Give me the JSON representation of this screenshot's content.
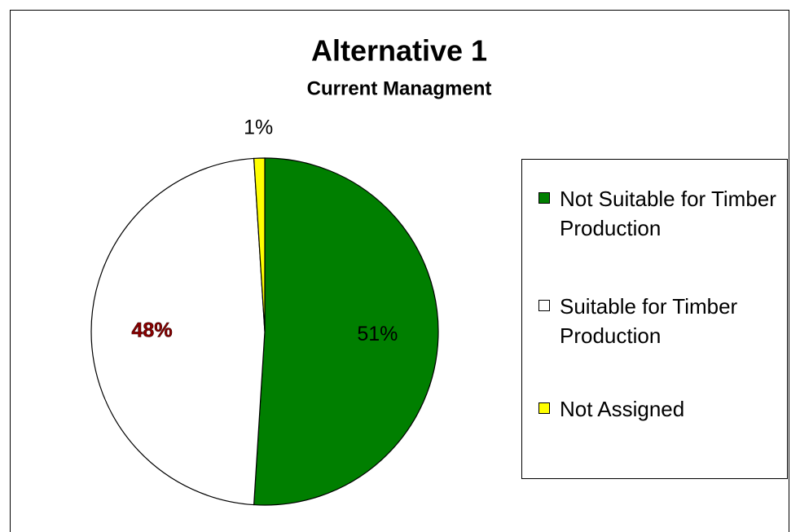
{
  "chart_data": {
    "type": "pie",
    "title": "Alternative 1",
    "subtitle": "Current Managment",
    "series": [
      {
        "name": "Not Suitable for Timber Production",
        "color": "#007f00",
        "values": [
          51
        ],
        "value_labels": [
          "51%"
        ]
      },
      {
        "name": "Suitable for Timber Production",
        "color": "#ffffff",
        "values": [
          48
        ],
        "value_labels": [
          "48%"
        ]
      },
      {
        "name": "Not Assigned",
        "color": "#ffff00",
        "values": [
          1
        ],
        "value_labels": [
          "1%"
        ]
      }
    ],
    "legend": "right"
  }
}
